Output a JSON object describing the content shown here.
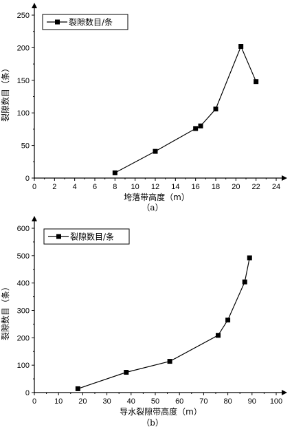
{
  "chart_data": [
    {
      "type": "line",
      "x": [
        8,
        12,
        16,
        16.5,
        18,
        20.5,
        22
      ],
      "series": [
        {
          "name": "裂隙数目/条",
          "values": [
            8,
            41,
            76,
            80,
            106,
            202,
            148
          ]
        }
      ],
      "xlabel": "垮落带高度（m）",
      "ylabel": "裂隙数目（条）",
      "xlim": [
        0,
        24
      ],
      "ylim": [
        0,
        250
      ],
      "xticks": [
        "0",
        "2",
        "4",
        "6",
        "8",
        "10",
        "12",
        "14",
        "16",
        "18",
        "20",
        "22",
        "24"
      ],
      "yticks": [
        "0",
        "50",
        "100",
        "150",
        "200",
        "250"
      ],
      "caption": "（a）",
      "legend": "top-left",
      "marker": "square",
      "grid": false
    },
    {
      "type": "line",
      "x": [
        18,
        38,
        56,
        76,
        80,
        87,
        89
      ],
      "series": [
        {
          "name": "裂隙数目/条",
          "values": [
            14,
            74,
            114,
            209,
            265,
            404,
            492
          ]
        }
      ],
      "xlabel": "导水裂隙带高度（m）",
      "ylabel": "裂隙数目（条）",
      "xlim": [
        0,
        100
      ],
      "ylim": [
        0,
        600
      ],
      "xticks": [
        "0",
        "10",
        "20",
        "30",
        "40",
        "50",
        "60",
        "70",
        "80",
        "90",
        "100"
      ],
      "yticks": [
        "0",
        "100",
        "200",
        "300",
        "400",
        "500",
        "600"
      ],
      "caption": "（b）",
      "legend": "top-left",
      "marker": "square",
      "grid": false
    }
  ]
}
